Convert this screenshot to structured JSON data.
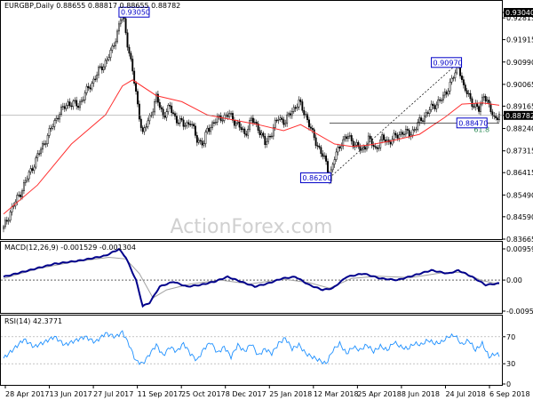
{
  "chart_data": [
    {
      "type": "candlestick",
      "title": "EURGBP,Daily  0.88655 0.88817 0.88655 0.88782",
      "ylim": [
        0.83665,
        0.9304
      ],
      "yticks": [
        "0.93040",
        "0.92815",
        "0.91915",
        "0.90990",
        "0.90065",
        "0.89165",
        "0.88782",
        "0.88240",
        "0.87315",
        "0.86415",
        "0.85490",
        "0.84590",
        "0.83665"
      ],
      "last_price": "0.88782",
      "xticks": [
        "28 Apr 2017",
        "13 Jun 2017",
        "27 Jul 2017",
        "11 Sep 2017",
        "25 Oct 2017",
        "8 Dec 2017",
        "25 Jan 2018",
        "12 Mar 2018",
        "25 Apr 2018",
        "8 Jun 2018",
        "24 Jul 2018",
        "6 Sep 2018"
      ],
      "price_path": [
        [
          0,
          0.841
        ],
        [
          4,
          0.848
        ],
        [
          10,
          0.856
        ],
        [
          18,
          0.868
        ],
        [
          25,
          0.878
        ],
        [
          32,
          0.888
        ],
        [
          38,
          0.893
        ],
        [
          44,
          0.892
        ],
        [
          50,
          0.899
        ],
        [
          56,
          0.906
        ],
        [
          61,
          0.911
        ],
        [
          64,
          0.915
        ],
        [
          68,
          0.925
        ],
        [
          70,
          0.9305
        ],
        [
          73,
          0.918
        ],
        [
          76,
          0.906
        ],
        [
          79,
          0.892
        ],
        [
          82,
          0.88
        ],
        [
          86,
          0.887
        ],
        [
          90,
          0.895
        ],
        [
          94,
          0.888
        ],
        [
          98,
          0.891
        ],
        [
          102,
          0.886
        ],
        [
          106,
          0.884
        ],
        [
          110,
          0.885
        ],
        [
          114,
          0.878
        ],
        [
          118,
          0.876
        ],
        [
          120,
          0.882
        ],
        [
          124,
          0.885
        ],
        [
          128,
          0.887
        ],
        [
          133,
          0.888
        ],
        [
          138,
          0.884
        ],
        [
          142,
          0.88
        ],
        [
          146,
          0.886
        ],
        [
          150,
          0.883
        ],
        [
          154,
          0.876
        ],
        [
          158,
          0.881
        ],
        [
          162,
          0.887
        ],
        [
          166,
          0.885
        ],
        [
          170,
          0.89
        ],
        [
          174,
          0.893
        ],
        [
          178,
          0.888
        ],
        [
          182,
          0.88
        ],
        [
          186,
          0.874
        ],
        [
          190,
          0.868
        ],
        [
          192,
          0.862
        ],
        [
          195,
          0.87
        ],
        [
          199,
          0.877
        ],
        [
          203,
          0.879
        ],
        [
          207,
          0.876
        ],
        [
          211,
          0.873
        ],
        [
          215,
          0.878
        ],
        [
          219,
          0.874
        ],
        [
          223,
          0.878
        ],
        [
          227,
          0.877
        ],
        [
          231,
          0.879
        ],
        [
          235,
          0.881
        ],
        [
          239,
          0.88
        ],
        [
          243,
          0.883
        ],
        [
          247,
          0.887
        ],
        [
          251,
          0.89
        ],
        [
          255,
          0.893
        ],
        [
          259,
          0.895
        ],
        [
          263,
          0.901
        ],
        [
          266,
          0.905
        ],
        [
          268,
          0.9097
        ],
        [
          271,
          0.899
        ],
        [
          274,
          0.896
        ],
        [
          277,
          0.892
        ],
        [
          280,
          0.89
        ],
        [
          283,
          0.897
        ],
        [
          286,
          0.891
        ],
        [
          289,
          0.887
        ],
        [
          292,
          0.8878
        ]
      ],
      "sma_path": [
        [
          0,
          0.847
        ],
        [
          20,
          0.859
        ],
        [
          40,
          0.876
        ],
        [
          60,
          0.888
        ],
        [
          70,
          0.9
        ],
        [
          76,
          0.9025
        ],
        [
          90,
          0.896
        ],
        [
          105,
          0.8935
        ],
        [
          120,
          0.888
        ],
        [
          135,
          0.886
        ],
        [
          150,
          0.884
        ],
        [
          165,
          0.8815
        ],
        [
          175,
          0.884
        ],
        [
          185,
          0.88
        ],
        [
          195,
          0.876
        ],
        [
          205,
          0.875
        ],
        [
          215,
          0.8755
        ],
        [
          230,
          0.8775
        ],
        [
          245,
          0.88
        ],
        [
          260,
          0.887
        ],
        [
          270,
          0.8925
        ],
        [
          282,
          0.893
        ],
        [
          292,
          0.892
        ]
      ],
      "annotations": [
        {
          "label": "0.93050",
          "x": 68,
          "y": 0.9305
        },
        {
          "label": "0.90970",
          "x": 252,
          "y": 0.9097
        },
        {
          "label": "0.88470",
          "x": 267,
          "y": 0.8847
        },
        {
          "label": "0.86200",
          "x": 175,
          "y": 0.862
        }
      ],
      "fib_label": "61.8",
      "trendline": [
        [
          192,
          0.862
        ],
        [
          268,
          0.9097
        ]
      ],
      "support_line": [
        [
          192,
          0.8847
        ],
        [
          292,
          0.8847
        ]
      ]
    },
    {
      "type": "line",
      "title": "MACD(12,26,9) -0.001529 -0.001304",
      "ylim": [
        -0.009538,
        0.00959
      ],
      "yticks": [
        "0.00959",
        "0.00",
        "-0.009538"
      ],
      "macd_path": [
        [
          0,
          0.001
        ],
        [
          15,
          0.003
        ],
        [
          30,
          0.005
        ],
        [
          45,
          0.006
        ],
        [
          60,
          0.0075
        ],
        [
          68,
          0.0095
        ],
        [
          72,
          0.007
        ],
        [
          78,
          0.0
        ],
        [
          82,
          -0.008
        ],
        [
          86,
          -0.007
        ],
        [
          92,
          -0.002
        ],
        [
          100,
          -0.0005
        ],
        [
          108,
          -0.002
        ],
        [
          116,
          -0.0015
        ],
        [
          124,
          -0.0005
        ],
        [
          132,
          0.001
        ],
        [
          140,
          -0.0005
        ],
        [
          148,
          -0.002
        ],
        [
          156,
          -0.001
        ],
        [
          164,
          0.0005
        ],
        [
          172,
          0.001
        ],
        [
          180,
          -0.0015
        ],
        [
          188,
          -0.003
        ],
        [
          194,
          -0.0025
        ],
        [
          202,
          0.001
        ],
        [
          212,
          0.002
        ],
        [
          222,
          0.0005
        ],
        [
          232,
          0.0
        ],
        [
          242,
          0.0015
        ],
        [
          252,
          0.003
        ],
        [
          262,
          0.002
        ],
        [
          268,
          0.003
        ],
        [
          276,
          0.001
        ],
        [
          284,
          -0.0015
        ],
        [
          292,
          -0.001
        ]
      ],
      "signal_path": [
        [
          0,
          0.0005
        ],
        [
          20,
          0.0035
        ],
        [
          40,
          0.0055
        ],
        [
          62,
          0.007
        ],
        [
          72,
          0.0065
        ],
        [
          80,
          0.002
        ],
        [
          88,
          -0.0055
        ],
        [
          96,
          -0.003
        ],
        [
          110,
          -0.0012
        ],
        [
          128,
          0.0
        ],
        [
          145,
          -0.0012
        ],
        [
          165,
          0.0003
        ],
        [
          180,
          -0.0008
        ],
        [
          192,
          -0.0025
        ],
        [
          205,
          0.0005
        ],
        [
          220,
          0.0012
        ],
        [
          240,
          0.0008
        ],
        [
          258,
          0.0022
        ],
        [
          270,
          0.0024
        ],
        [
          282,
          -0.0002
        ],
        [
          292,
          -0.0012
        ]
      ]
    },
    {
      "type": "line",
      "title": "RSI(14) 42.3771",
      "ylim": [
        0,
        100
      ],
      "yticks": [
        "70",
        "30",
        "0"
      ],
      "rsi_path": [
        [
          0,
          38
        ],
        [
          6,
          52
        ],
        [
          12,
          66
        ],
        [
          18,
          55
        ],
        [
          24,
          62
        ],
        [
          30,
          70
        ],
        [
          36,
          58
        ],
        [
          42,
          64
        ],
        [
          48,
          70
        ],
        [
          54,
          62
        ],
        [
          60,
          75
        ],
        [
          66,
          70
        ],
        [
          70,
          77
        ],
        [
          74,
          58
        ],
        [
          78,
          34
        ],
        [
          82,
          30
        ],
        [
          86,
          44
        ],
        [
          90,
          58
        ],
        [
          94,
          42
        ],
        [
          98,
          55
        ],
        [
          102,
          48
        ],
        [
          106,
          60
        ],
        [
          110,
          45
        ],
        [
          114,
          35
        ],
        [
          118,
          52
        ],
        [
          122,
          62
        ],
        [
          126,
          46
        ],
        [
          130,
          55
        ],
        [
          134,
          40
        ],
        [
          138,
          58
        ],
        [
          142,
          48
        ],
        [
          146,
          60
        ],
        [
          150,
          42
        ],
        [
          154,
          52
        ],
        [
          158,
          45
        ],
        [
          162,
          60
        ],
        [
          166,
          68
        ],
        [
          170,
          52
        ],
        [
          174,
          58
        ],
        [
          178,
          45
        ],
        [
          182,
          40
        ],
        [
          186,
          35
        ],
        [
          190,
          30
        ],
        [
          194,
          50
        ],
        [
          198,
          60
        ],
        [
          202,
          45
        ],
        [
          206,
          55
        ],
        [
          210,
          50
        ],
        [
          214,
          58
        ],
        [
          218,
          48
        ],
        [
          222,
          56
        ],
        [
          226,
          50
        ],
        [
          230,
          62
        ],
        [
          234,
          55
        ],
        [
          238,
          52
        ],
        [
          242,
          60
        ],
        [
          246,
          58
        ],
        [
          250,
          65
        ],
        [
          254,
          60
        ],
        [
          258,
          62
        ],
        [
          262,
          70
        ],
        [
          266,
          72
        ],
        [
          270,
          58
        ],
        [
          274,
          65
        ],
        [
          278,
          50
        ],
        [
          282,
          60
        ],
        [
          286,
          40
        ],
        [
          290,
          45
        ],
        [
          292,
          42
        ]
      ]
    }
  ],
  "watermark": "ActionForex.com",
  "colors": {
    "candles": "#000000",
    "sma": "#ff3030",
    "annotation": "#0000c8",
    "macd": "#00008b",
    "signal": "#a0a0a0",
    "rsi": "#1e90ff",
    "fib": "#2e8b57"
  }
}
